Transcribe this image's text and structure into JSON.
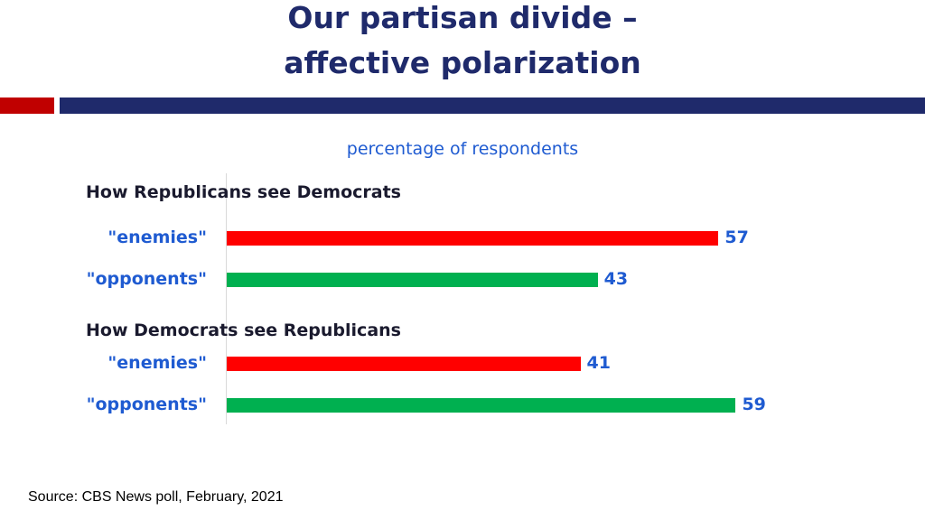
{
  "header": {
    "title_line1": "Our partisan divide –",
    "title_line2": "affective polarization"
  },
  "colors": {
    "title": "#1f2a6b",
    "band_red": "#c00000",
    "band_blue": "#1f2a6b",
    "enemies": "#ff0000",
    "opponents": "#00b050",
    "labels": "#1f5bd1"
  },
  "chart_data": {
    "type": "bar",
    "orientation": "horizontal",
    "subtitle": "percentage of respondents",
    "groups": [
      {
        "title": "How Republicans see Democrats",
        "bars": [
          {
            "label": "\"enemies\"",
            "value": 57
          },
          {
            "label": "\"opponents\"",
            "value": 43
          }
        ]
      },
      {
        "title": "How Democrats see Republicans",
        "bars": [
          {
            "label": "\"enemies\"",
            "value": 41
          },
          {
            "label": "\"opponents\"",
            "value": 59
          }
        ]
      }
    ]
  },
  "footer": {
    "source": "Source: CBS News poll, February, 2021"
  }
}
